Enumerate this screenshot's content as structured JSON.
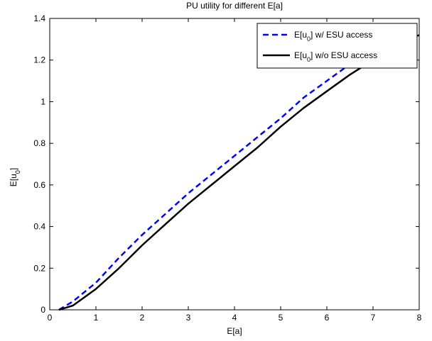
{
  "chart_data": {
    "type": "line",
    "title": "PU utility for different E[a]",
    "xlabel": "E[a]",
    "ylabel": "E[u0]",
    "xlim": [
      0,
      8
    ],
    "ylim": [
      0,
      1.4
    ],
    "xticks": [
      "0",
      "1",
      "2",
      "3",
      "4",
      "5",
      "6",
      "7",
      "8"
    ],
    "yticks": [
      "0",
      "0.2",
      "0.4",
      "0.6",
      "0.8",
      "1",
      "1.2",
      "1.4"
    ],
    "grid": false,
    "legend_position": "top-right",
    "series": [
      {
        "name": "E[u0] w/ ESU access",
        "color": "#0000ff",
        "style": "dashed",
        "x": [
          0.2,
          0.5,
          1.0,
          1.5,
          2.0,
          2.5,
          3.0,
          3.5,
          4.0,
          4.5,
          5.0,
          5.5,
          6.0,
          6.5,
          7.0,
          7.5,
          8.0
        ],
        "y": [
          0.0,
          0.04,
          0.13,
          0.25,
          0.36,
          0.46,
          0.56,
          0.65,
          0.74,
          0.83,
          0.92,
          1.02,
          1.1,
          1.18,
          1.25,
          1.32,
          1.36
        ]
      },
      {
        "name": "E[u0] w/o ESU access",
        "color": "#000000",
        "style": "solid",
        "x": [
          0.2,
          0.5,
          1.0,
          1.5,
          2.0,
          2.5,
          3.0,
          3.5,
          4.0,
          4.5,
          5.0,
          5.5,
          6.0,
          6.5,
          7.0,
          7.5,
          8.0
        ],
        "y": [
          0.0,
          0.02,
          0.1,
          0.2,
          0.31,
          0.41,
          0.51,
          0.6,
          0.69,
          0.78,
          0.88,
          0.97,
          1.05,
          1.13,
          1.2,
          1.28,
          1.32
        ]
      }
    ]
  }
}
